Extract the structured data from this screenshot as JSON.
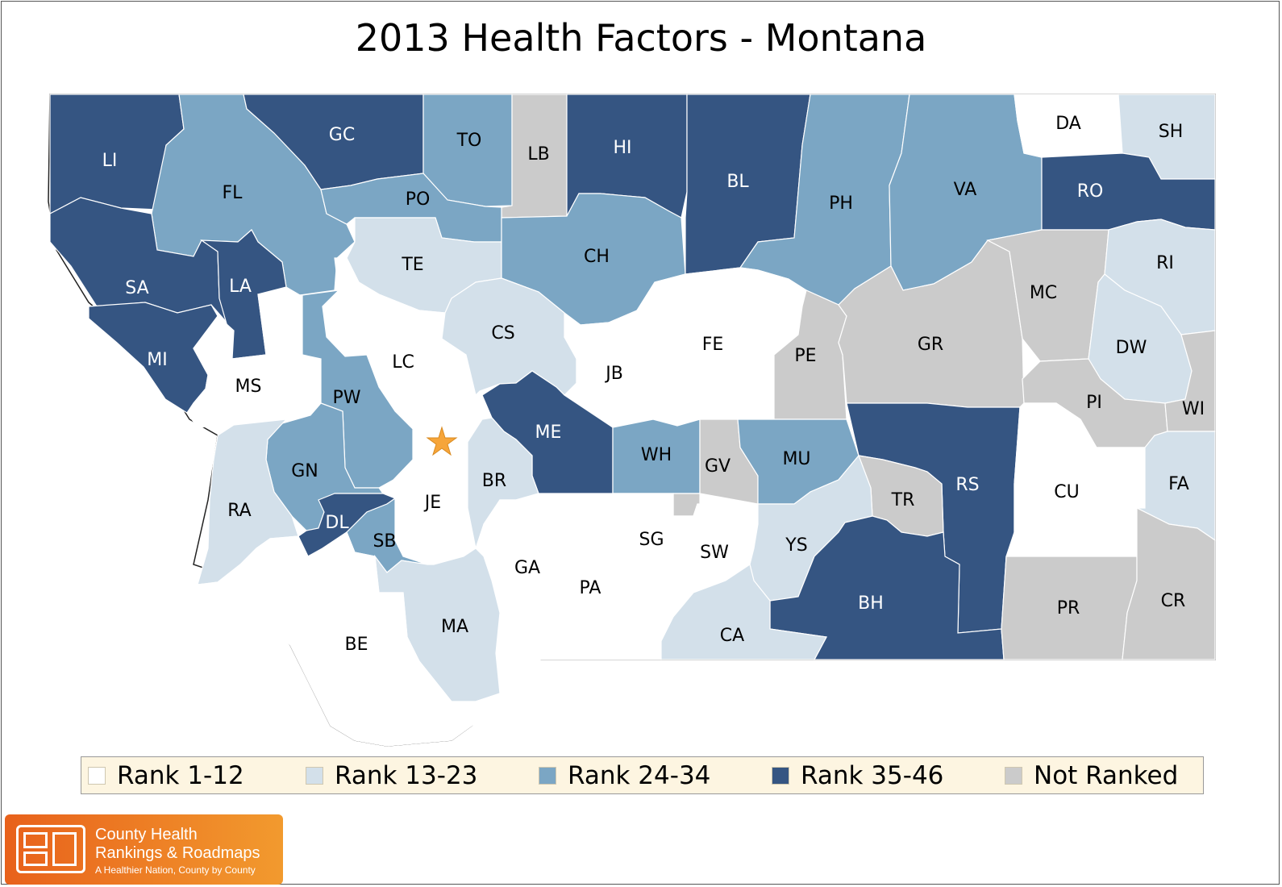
{
  "title": "2013 Health Factors - Montana",
  "colors": {
    "rank_1_12": "#ffffff",
    "rank_13_23": "#d3e0ea",
    "rank_24_34": "#7ba6c4",
    "rank_35_46": "#355582",
    "not_ranked": "#cbcbcb"
  },
  "legend": [
    {
      "label": "Rank 1-12",
      "class": "rank_1_12"
    },
    {
      "label": "Rank 13-23",
      "class": "rank_13_23"
    },
    {
      "label": "Rank 24-34",
      "class": "rank_24_34"
    },
    {
      "label": "Rank 35-46",
      "class": "rank_35_46"
    },
    {
      "label": "Not Ranked",
      "class": "not_ranked"
    }
  ],
  "counties": [
    {
      "abbr": "LI",
      "class": "rank_35_46"
    },
    {
      "abbr": "FL",
      "class": "rank_24_34"
    },
    {
      "abbr": "GC",
      "class": "rank_35_46"
    },
    {
      "abbr": "TO",
      "class": "rank_24_34"
    },
    {
      "abbr": "LB",
      "class": "not_ranked"
    },
    {
      "abbr": "HI",
      "class": "rank_35_46"
    },
    {
      "abbr": "BL",
      "class": "rank_35_46"
    },
    {
      "abbr": "PH",
      "class": "rank_24_34"
    },
    {
      "abbr": "VA",
      "class": "rank_24_34"
    },
    {
      "abbr": "DA",
      "class": "rank_1_12"
    },
    {
      "abbr": "SH",
      "class": "rank_13_23"
    },
    {
      "abbr": "RO",
      "class": "rank_35_46"
    },
    {
      "abbr": "PO",
      "class": "rank_24_34"
    },
    {
      "abbr": "SA",
      "class": "rank_35_46"
    },
    {
      "abbr": "LA",
      "class": "rank_35_46"
    },
    {
      "abbr": "TE",
      "class": "rank_13_23"
    },
    {
      "abbr": "CH",
      "class": "rank_24_34"
    },
    {
      "abbr": "MI",
      "class": "rank_35_46"
    },
    {
      "abbr": "MS",
      "class": "rank_1_12"
    },
    {
      "abbr": "LC",
      "class": "rank_1_12"
    },
    {
      "abbr": "CS",
      "class": "rank_13_23"
    },
    {
      "abbr": "JB",
      "class": "rank_1_12"
    },
    {
      "abbr": "FE",
      "class": "rank_1_12"
    },
    {
      "abbr": "PE",
      "class": "not_ranked"
    },
    {
      "abbr": "GR",
      "class": "not_ranked"
    },
    {
      "abbr": "MC",
      "class": "not_ranked"
    },
    {
      "abbr": "RI",
      "class": "rank_13_23"
    },
    {
      "abbr": "DW",
      "class": "rank_13_23"
    },
    {
      "abbr": "PI",
      "class": "not_ranked"
    },
    {
      "abbr": "WI",
      "class": "not_ranked"
    },
    {
      "abbr": "PW",
      "class": "rank_24_34"
    },
    {
      "abbr": "ME",
      "class": "rank_35_46"
    },
    {
      "abbr": "WH",
      "class": "rank_24_34"
    },
    {
      "abbr": "GV",
      "class": "not_ranked"
    },
    {
      "abbr": "MU",
      "class": "rank_24_34"
    },
    {
      "abbr": "RS",
      "class": "rank_35_46"
    },
    {
      "abbr": "CU",
      "class": "rank_1_12"
    },
    {
      "abbr": "FA",
      "class": "rank_13_23"
    },
    {
      "abbr": "GN",
      "class": "rank_24_34"
    },
    {
      "abbr": "RA",
      "class": "rank_13_23"
    },
    {
      "abbr": "JE",
      "class": "rank_1_12"
    },
    {
      "abbr": "BR",
      "class": "rank_13_23"
    },
    {
      "abbr": "TR",
      "class": "not_ranked"
    },
    {
      "abbr": "DL",
      "class": "rank_35_46"
    },
    {
      "abbr": "SB",
      "class": "rank_24_34"
    },
    {
      "abbr": "SG",
      "class": "rank_1_12"
    },
    {
      "abbr": "SW",
      "class": "rank_1_12"
    },
    {
      "abbr": "YS",
      "class": "rank_13_23"
    },
    {
      "abbr": "GA",
      "class": "rank_1_12"
    },
    {
      "abbr": "PA",
      "class": "rank_1_12"
    },
    {
      "abbr": "BH",
      "class": "rank_35_46"
    },
    {
      "abbr": "PR",
      "class": "not_ranked"
    },
    {
      "abbr": "CR",
      "class": "not_ranked"
    },
    {
      "abbr": "MA",
      "class": "rank_13_23"
    },
    {
      "abbr": "CA",
      "class": "rank_13_23"
    },
    {
      "abbr": "BE",
      "class": "rank_1_12"
    }
  ],
  "capital_marker": "star",
  "logo": {
    "line1": "County Health",
    "line2": "Rankings & Roadmaps",
    "tagline": "A Healthier Nation, County by County"
  }
}
